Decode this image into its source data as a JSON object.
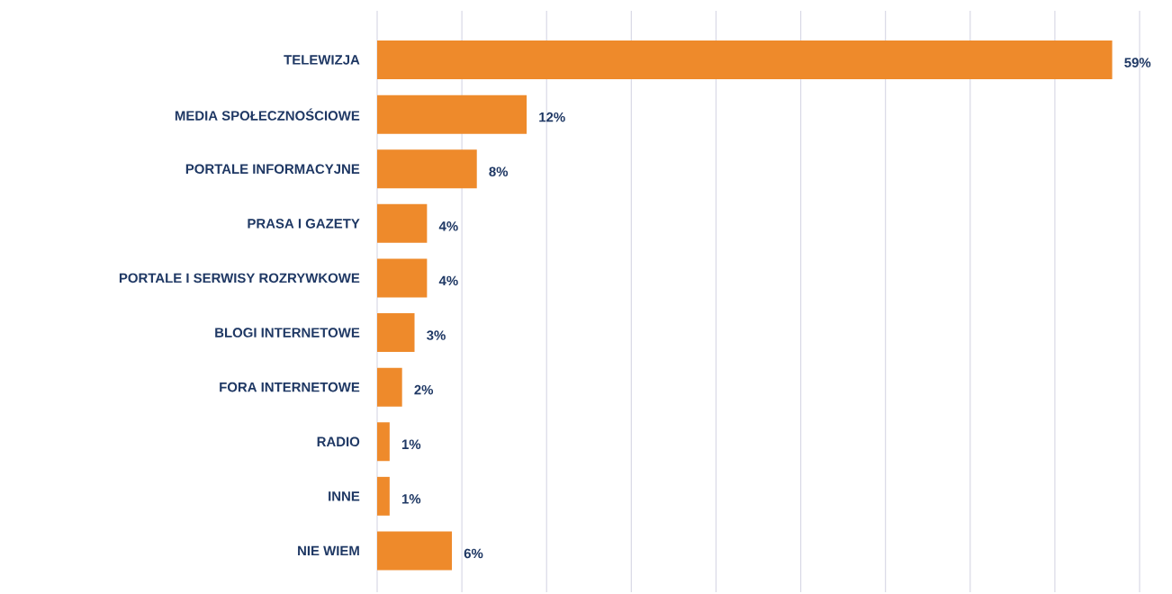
{
  "chart_data": {
    "type": "bar",
    "orientation": "horizontal",
    "categories": [
      "TELEWIZJA",
      "MEDIA SPOŁECZNOŚCIOWE",
      "PORTALE INFORMACYJNE",
      "PRASA I GAZETY",
      "PORTALE I SERWISY ROZRYWKOWE",
      "BLOGI INTERNETOWE",
      "FORA INTERNETOWE",
      "RADIO",
      "INNE",
      "NIE WIEM"
    ],
    "values": [
      59,
      12,
      8,
      4,
      4,
      3,
      2,
      1,
      1,
      6
    ],
    "value_labels": [
      "59%",
      "12%",
      "8%",
      "4%",
      "4%",
      "3%",
      "2%",
      "1%",
      "1%",
      "6%"
    ],
    "color": "#ee8a2b",
    "xlim": [
      0,
      61.2
    ],
    "xticks": [
      {
        "value": 0,
        "label": null
      },
      {
        "value": 6.8,
        "label": null
      },
      {
        "value": 13.6,
        "label": null
      },
      {
        "value": 20.4,
        "label": null
      },
      {
        "value": 27.2,
        "label": null
      },
      {
        "value": 34,
        "label": null
      },
      {
        "value": 40.8,
        "label": null
      },
      {
        "value": 47.6,
        "label": null
      },
      {
        "value": 54.4,
        "label": null
      },
      {
        "value": 61.2,
        "label": null
      }
    ],
    "grid": "x"
  }
}
